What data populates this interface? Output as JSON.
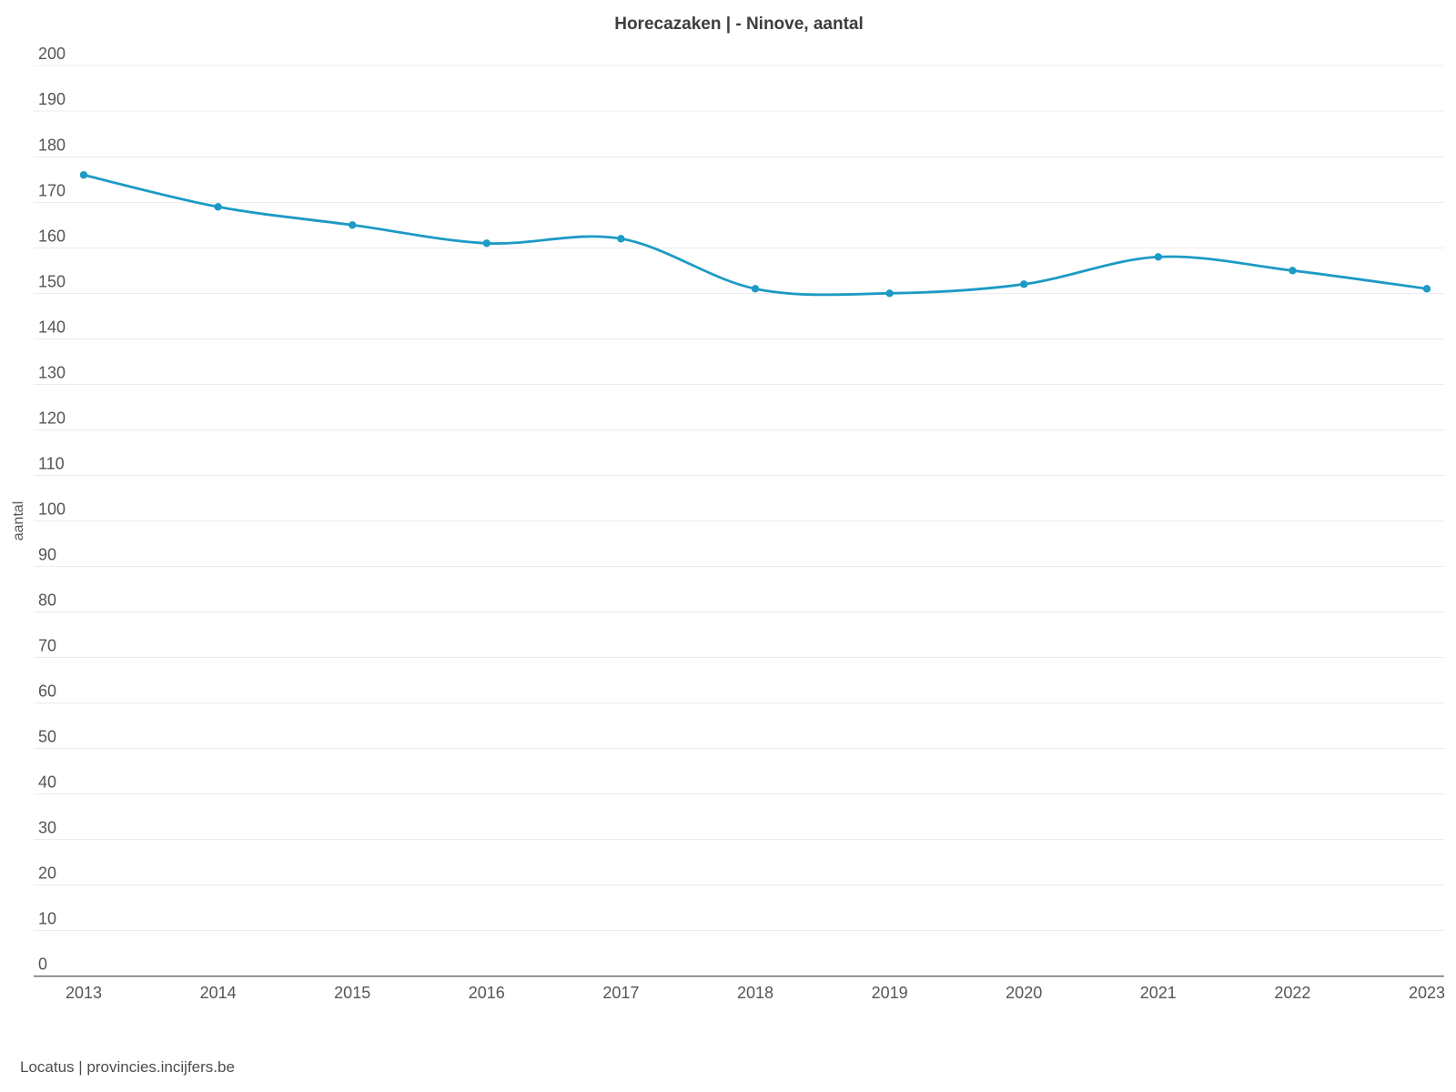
{
  "header": {
    "title": "Horecazaken | - Ninove, aantal"
  },
  "footer": {
    "source": "Locatus | provincies.incijfers.be"
  },
  "colors": {
    "series": "#1d9ac6",
    "gridline": "#ececec",
    "axis_line": "#6f6f6f",
    "tick_label": "#555555",
    "title_text": "#3d3d3d",
    "footer_text": "#4d4d4d",
    "background": "#ffffff"
  },
  "chart_data": {
    "type": "line",
    "title": "Horecazaken | - Ninove, aantal",
    "xlabel": "",
    "ylabel": "aantal",
    "categories": [
      "2013",
      "2014",
      "2015",
      "2016",
      "2017",
      "2018",
      "2019",
      "2020",
      "2021",
      "2022",
      "2023"
    ],
    "values": [
      176,
      169,
      165,
      161,
      162,
      151,
      150,
      152,
      158,
      155,
      151
    ],
    "ylim": [
      0,
      200
    ],
    "ytick_step": 10,
    "grid": true,
    "legend_position": "none",
    "marker": "circle",
    "line_style": "smooth"
  }
}
